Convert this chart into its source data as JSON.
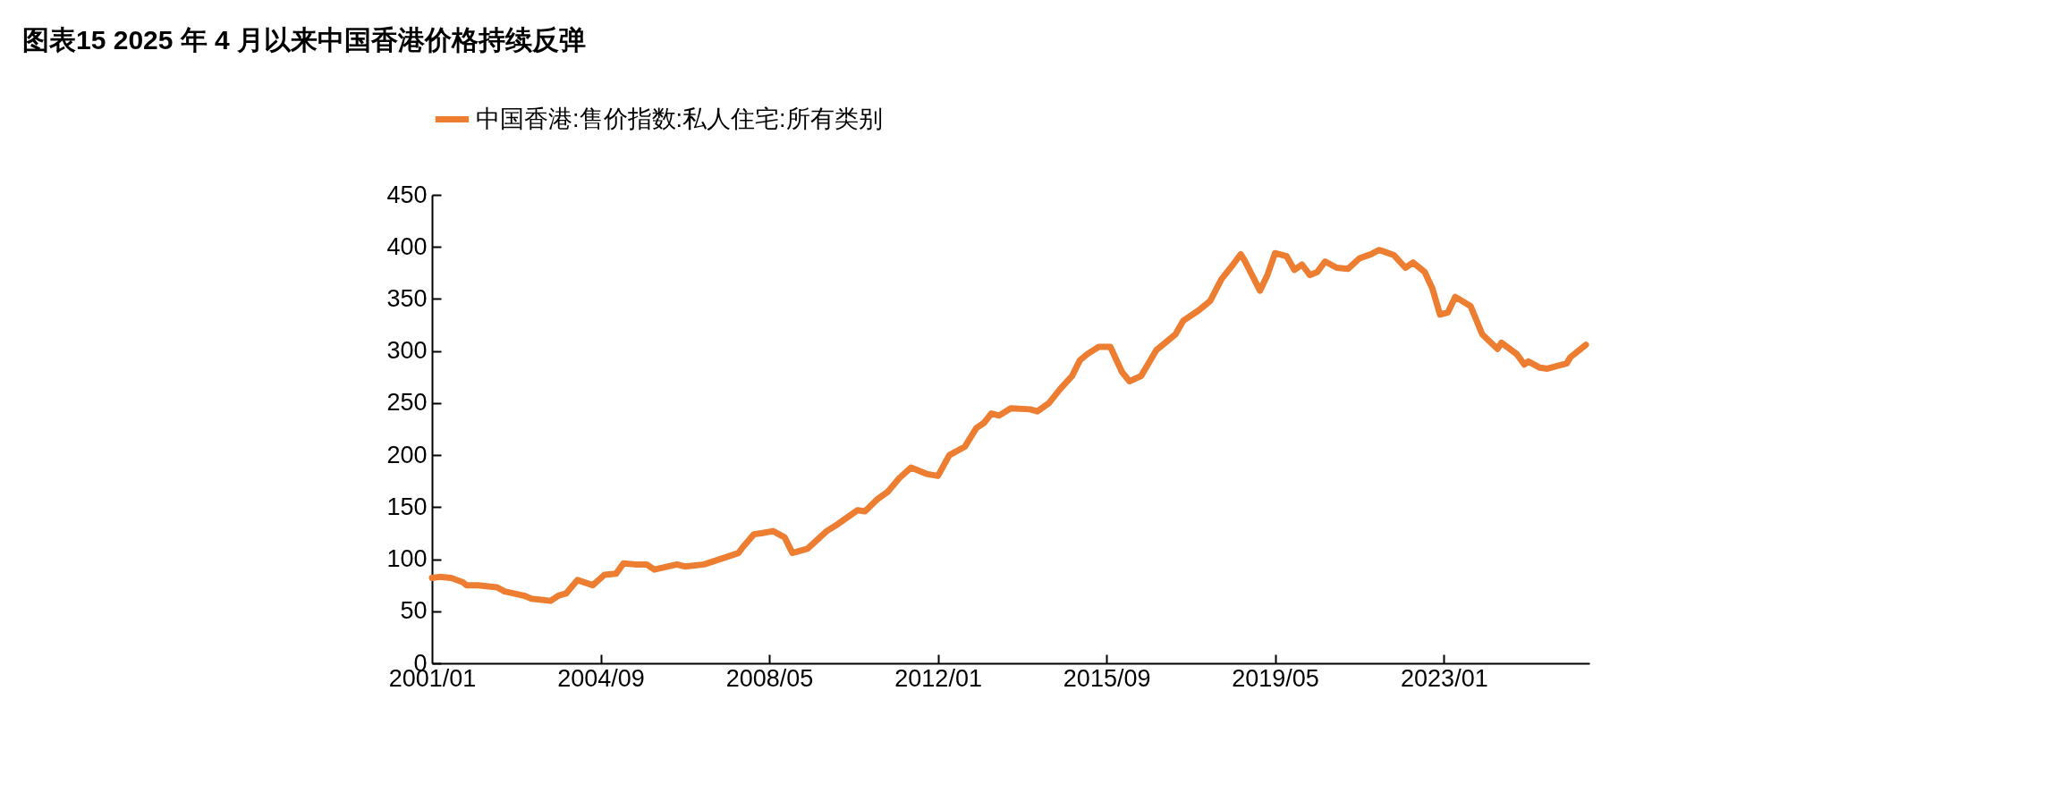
{
  "chart_data": {
    "type": "line",
    "title": "图表15    2025 年 4 月以来中国香港价格持续反弹",
    "x": [
      "2001-01",
      "2001-03",
      "2001-06",
      "2001-09",
      "2001-10",
      "2002-01",
      "2002-06",
      "2002-08",
      "2003-01",
      "2003-03",
      "2003-08",
      "2003-10",
      "2003-12",
      "2004-03",
      "2004-07",
      "2004-10",
      "2005-01",
      "2005-03",
      "2005-06",
      "2005-09",
      "2005-11",
      "2006-05",
      "2006-07",
      "2006-12",
      "2007-05",
      "2007-09",
      "2007-10",
      "2008-01",
      "2008-03",
      "2008-06",
      "2008-09",
      "2008-11",
      "2009-03",
      "2009-08",
      "2009-11",
      "2010-04",
      "2010-06",
      "2010-09",
      "2010-12",
      "2011-03",
      "2011-06",
      "2011-10",
      "2012-01",
      "2012-04",
      "2012-08",
      "2012-11",
      "2013-01",
      "2013-03",
      "2013-05",
      "2013-08",
      "2014-01",
      "2014-03",
      "2014-06",
      "2014-09",
      "2014-12",
      "2015-02",
      "2015-04",
      "2015-07",
      "2015-10",
      "2016-01",
      "2016-03",
      "2016-06",
      "2016-10",
      "2016-12",
      "2017-03",
      "2017-05",
      "2017-09",
      "2017-12",
      "2018-03",
      "2018-06",
      "2018-08",
      "2018-09",
      "2019-01",
      "2019-03",
      "2019-05",
      "2019-08",
      "2019-10",
      "2019-12",
      "2020-02",
      "2020-04",
      "2020-06",
      "2020-09",
      "2020-12",
      "2021-03",
      "2021-06",
      "2021-08",
      "2021-09",
      "2021-12",
      "2022-03",
      "2022-05",
      "2022-08",
      "2022-10",
      "2022-12",
      "2023-02",
      "2023-04",
      "2023-08",
      "2023-11",
      "2024-01",
      "2024-03",
      "2024-04",
      "2024-08",
      "2024-10",
      "2024-11",
      "2025-02",
      "2025-04",
      "2025-07",
      "2025-09",
      "2025-10",
      "2025-12",
      "2026-02"
    ],
    "series": [
      {
        "name": "中国香港:售价指数:私人住宅:所有类别",
        "color": "#ed7d31",
        "values": [
          82,
          83,
          82,
          78,
          75,
          75,
          73,
          69,
          65,
          62,
          60,
          65,
          67,
          80,
          75,
          85,
          86,
          96,
          95,
          95,
          90,
          95,
          93,
          95,
          101,
          106,
          111,
          124,
          125,
          127,
          121,
          106,
          110,
          127,
          134,
          147,
          146,
          157,
          165,
          178,
          188,
          182,
          180,
          200,
          208,
          226,
          231,
          240,
          238,
          245,
          244,
          242,
          250,
          264,
          276,
          291,
          297,
          304,
          304,
          280,
          271,
          276,
          301,
          307,
          316,
          329,
          339,
          348,
          369,
          383,
          393,
          387,
          358,
          373,
          394,
          391,
          378,
          383,
          373,
          376,
          386,
          380,
          379,
          389,
          393,
          397,
          396,
          392,
          380,
          385,
          376,
          360,
          335,
          337,
          352,
          343,
          316,
          309,
          302,
          308,
          297,
          287,
          290,
          284,
          283,
          286,
          288,
          294,
          300,
          306
        ]
      }
    ],
    "xlim": [
      "2001-01",
      "2026-03"
    ],
    "xticks": [
      {
        "value": "2001-01",
        "label": "2001/01"
      },
      {
        "value": "2004-09",
        "label": "2004/09"
      },
      {
        "value": "2008-05",
        "label": "2008/05"
      },
      {
        "value": "2012-01",
        "label": "2012/01"
      },
      {
        "value": "2015-09",
        "label": "2015/09"
      },
      {
        "value": "2019-05",
        "label": "2019/05"
      },
      {
        "value": "2023-01",
        "label": "2023/01"
      }
    ],
    "ylim": [
      0,
      450
    ],
    "yticks": [
      0,
      50,
      100,
      150,
      200,
      250,
      300,
      350,
      400,
      450
    ],
    "grid": false,
    "legend": "top",
    "marker": "none",
    "line_style": "solid"
  }
}
